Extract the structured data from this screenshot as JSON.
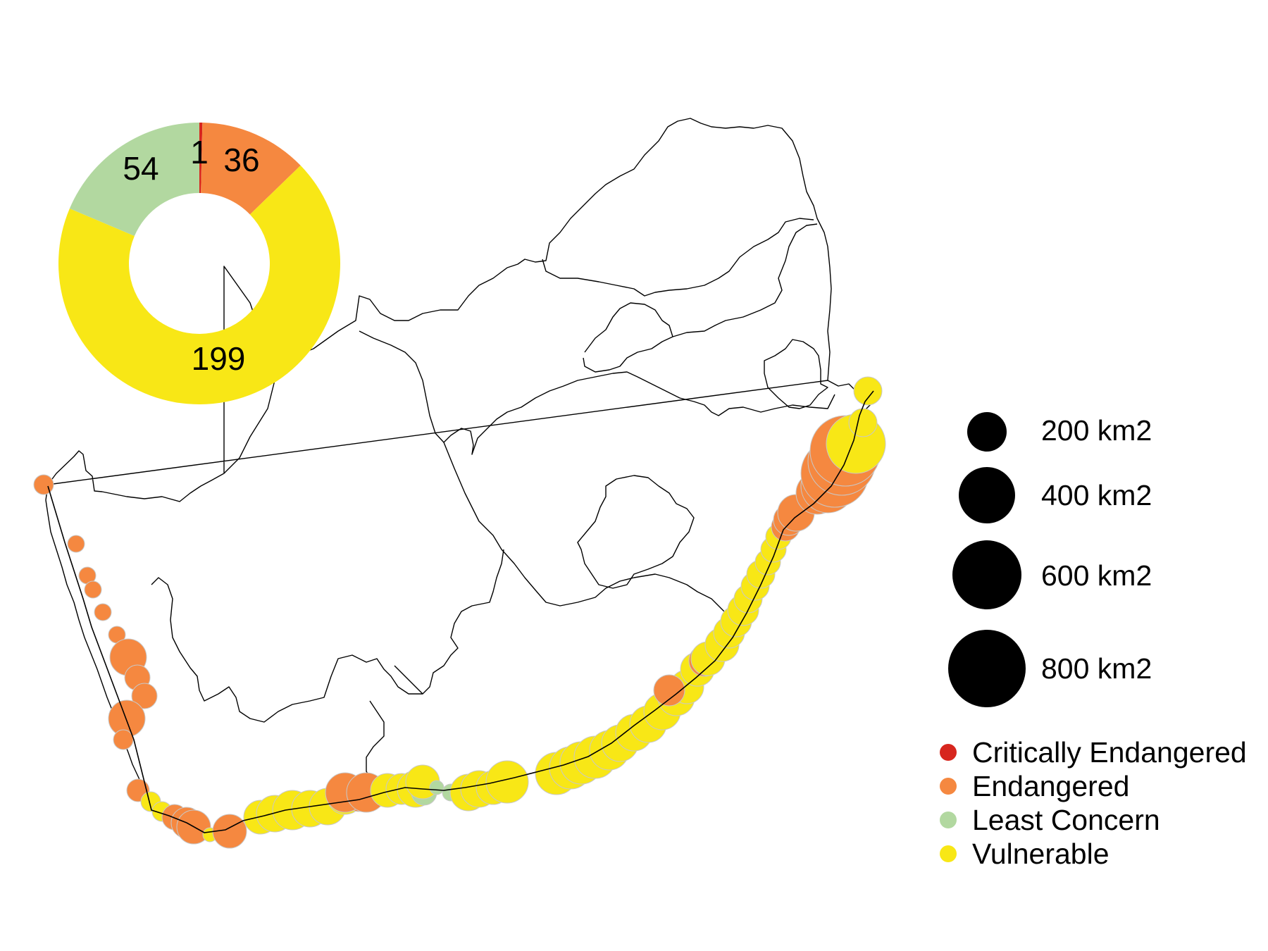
{
  "donut": {
    "segments": [
      {
        "label": "1",
        "value": 1,
        "color": "#d7261e"
      },
      {
        "label": "36",
        "value": 36,
        "color": "#f58840"
      },
      {
        "label": "199",
        "value": 199,
        "color": "#f8e716"
      },
      {
        "label": "54",
        "value": 54,
        "color": "#b2d8a0"
      }
    ]
  },
  "size_legend": [
    {
      "label": "200 km2",
      "area": 200
    },
    {
      "label": "400 km2",
      "area": 400
    },
    {
      "label": "600 km2",
      "area": 600
    },
    {
      "label": "800 km2",
      "area": 800
    }
  ],
  "status_legend": [
    {
      "label": "Critically Endangered",
      "color": "#d7261e"
    },
    {
      "label": "Endangered",
      "color": "#f58840"
    },
    {
      "label": "Least Concern",
      "color": "#b2d8a0"
    },
    {
      "label": "Vulnerable",
      "color": "#f8e716"
    }
  ],
  "colors": {
    "critically_endangered": "#d7261e",
    "endangered": "#f58840",
    "least_concern": "#b2d8a0",
    "vulnerable": "#f8e716",
    "circle_stroke": "#c8c8c8",
    "boundary": "#000000"
  }
}
